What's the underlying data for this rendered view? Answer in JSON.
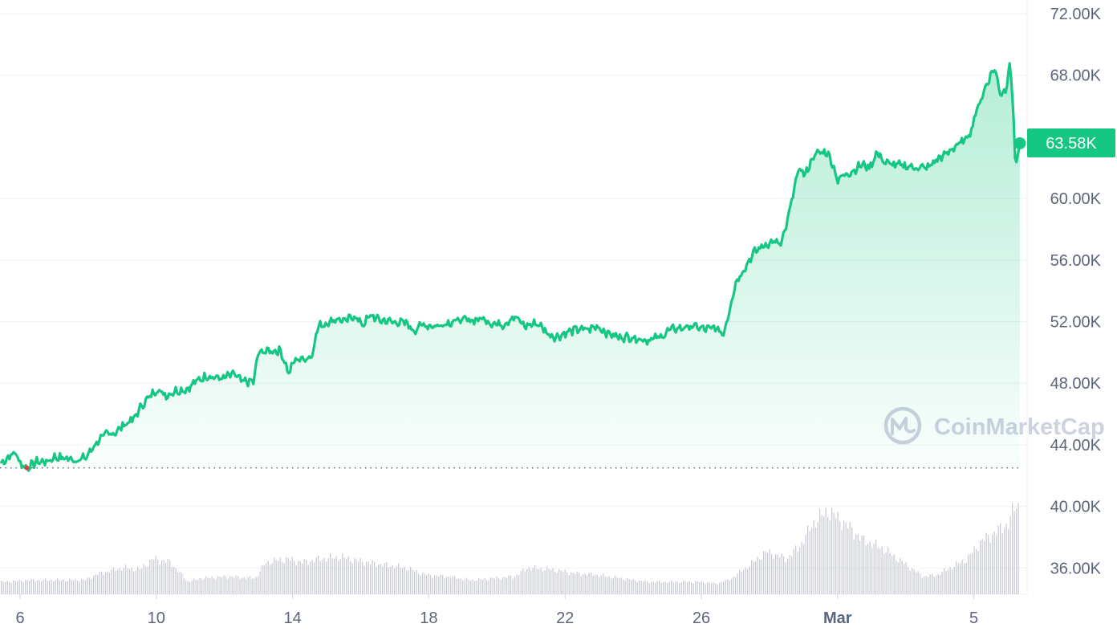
{
  "watermark": {
    "text": "CoinMarketCap"
  },
  "colors": {
    "line": "#16c784",
    "area_top": "#16c784",
    "grid": "#eff2f5",
    "axis_text": "#5d6579",
    "volume_bar": "#c9ccd4",
    "baseline_dots": "#58667e",
    "start_dot": "#ea3943",
    "watermark": "#cdd1e0"
  },
  "chart_data": {
    "type": "area",
    "title": "",
    "xlabel": "",
    "ylabel": "",
    "ylim": [
      34500,
      72000
    ],
    "y_ticks": [
      72000,
      68000,
      60000,
      56000,
      52000,
      48000,
      44000,
      40000,
      36000
    ],
    "y_tick_labels": [
      "72.00K",
      "68.00K",
      "60.00K",
      "56.00K",
      "52.00K",
      "48.00K",
      "44.00K",
      "40.00K",
      "36.00K"
    ],
    "x_ticks": [
      {
        "day": 6,
        "label": "6",
        "bold": false
      },
      {
        "day": 10,
        "label": "10",
        "bold": false
      },
      {
        "day": 14,
        "label": "14",
        "bold": false
      },
      {
        "day": 18,
        "label": "18",
        "bold": false
      },
      {
        "day": 22,
        "label": "22",
        "bold": false
      },
      {
        "day": 26,
        "label": "26",
        "bold": false
      },
      {
        "day": 30,
        "label": "Mar",
        "bold": true
      },
      {
        "day": 34,
        "label": "5",
        "bold": false
      }
    ],
    "x_axis_note": "day of Feb; Mar 1 = 30, Mar 5 = 34",
    "xlim": [
      5.45,
      35.35
    ],
    "current_price": 63580,
    "current_price_label": "63.58K",
    "baseline_value": 42500,
    "series": [
      {
        "values": [
          [
            5.45,
            42800
          ],
          [
            5.6,
            43100
          ],
          [
            5.85,
            43500
          ],
          [
            6.05,
            42700
          ],
          [
            6.2,
            42500
          ],
          [
            6.5,
            42900
          ],
          [
            6.8,
            42900
          ],
          [
            7.0,
            43200
          ],
          [
            7.4,
            43100
          ],
          [
            7.7,
            43000
          ],
          [
            7.95,
            43200
          ],
          [
            8.1,
            43700
          ],
          [
            8.3,
            44300
          ],
          [
            8.55,
            44700
          ],
          [
            8.8,
            44800
          ],
          [
            9.05,
            45300
          ],
          [
            9.35,
            45700
          ],
          [
            9.55,
            46500
          ],
          [
            9.8,
            47100
          ],
          [
            10.0,
            47600
          ],
          [
            10.3,
            47200
          ],
          [
            10.55,
            47500
          ],
          [
            10.9,
            47600
          ],
          [
            11.15,
            48100
          ],
          [
            11.5,
            48500
          ],
          [
            11.9,
            48300
          ],
          [
            12.3,
            48600
          ],
          [
            12.5,
            48100
          ],
          [
            12.85,
            48100
          ],
          [
            13.0,
            50000
          ],
          [
            13.3,
            50100
          ],
          [
            13.65,
            50100
          ],
          [
            13.9,
            48600
          ],
          [
            14.05,
            49500
          ],
          [
            14.3,
            49600
          ],
          [
            14.55,
            49700
          ],
          [
            14.75,
            51700
          ],
          [
            15.0,
            51900
          ],
          [
            15.3,
            52200
          ],
          [
            15.55,
            52000
          ],
          [
            15.8,
            52400
          ],
          [
            16.05,
            51800
          ],
          [
            16.3,
            52400
          ],
          [
            16.55,
            52100
          ],
          [
            16.9,
            52000
          ],
          [
            17.35,
            51900
          ],
          [
            17.55,
            51400
          ],
          [
            17.8,
            51800
          ],
          [
            18.2,
            51700
          ],
          [
            18.5,
            51900
          ],
          [
            18.9,
            52100
          ],
          [
            19.3,
            52100
          ],
          [
            19.6,
            52200
          ],
          [
            19.85,
            51900
          ],
          [
            20.2,
            51800
          ],
          [
            20.45,
            52300
          ],
          [
            20.6,
            52200
          ],
          [
            20.8,
            51700
          ],
          [
            21.15,
            51900
          ],
          [
            21.3,
            51700
          ],
          [
            21.5,
            51200
          ],
          [
            21.75,
            51000
          ],
          [
            22.05,
            51300
          ],
          [
            22.35,
            51500
          ],
          [
            22.7,
            51500
          ],
          [
            22.95,
            51700
          ],
          [
            23.2,
            51300
          ],
          [
            23.55,
            51000
          ],
          [
            23.9,
            51000
          ],
          [
            24.15,
            50900
          ],
          [
            24.4,
            50800
          ],
          [
            24.8,
            51000
          ],
          [
            25.1,
            51500
          ],
          [
            25.45,
            51600
          ],
          [
            25.8,
            51700
          ],
          [
            26.1,
            51500
          ],
          [
            26.4,
            51600
          ],
          [
            26.65,
            51200
          ],
          [
            26.85,
            53000
          ],
          [
            27.0,
            54500
          ],
          [
            27.3,
            55600
          ],
          [
            27.55,
            56500
          ],
          [
            27.8,
            56900
          ],
          [
            28.1,
            57200
          ],
          [
            28.35,
            57000
          ],
          [
            28.55,
            58700
          ],
          [
            28.75,
            61000
          ],
          [
            28.9,
            62000
          ],
          [
            29.05,
            61500
          ],
          [
            29.25,
            62600
          ],
          [
            29.45,
            63000
          ],
          [
            29.7,
            63000
          ],
          [
            29.9,
            62000
          ],
          [
            30.0,
            61100
          ],
          [
            30.2,
            61600
          ],
          [
            30.4,
            61700
          ],
          [
            30.7,
            62200
          ],
          [
            30.95,
            62000
          ],
          [
            31.15,
            63000
          ],
          [
            31.4,
            62300
          ],
          [
            31.65,
            62200
          ],
          [
            32.0,
            62100
          ],
          [
            32.3,
            62000
          ],
          [
            32.65,
            62000
          ],
          [
            32.9,
            62500
          ],
          [
            33.2,
            62900
          ],
          [
            33.45,
            63400
          ],
          [
            33.7,
            63700
          ],
          [
            33.9,
            64300
          ],
          [
            34.05,
            65500
          ],
          [
            34.25,
            66700
          ],
          [
            34.45,
            67800
          ],
          [
            34.6,
            68500
          ],
          [
            34.8,
            66700
          ],
          [
            34.95,
            67200
          ],
          [
            35.05,
            68800
          ],
          [
            35.15,
            66200
          ],
          [
            35.22,
            62000
          ],
          [
            35.35,
            63580
          ]
        ]
      }
    ],
    "volume": {
      "ylim": [
        0,
        150
      ],
      "values": [
        [
          5.45,
          14
        ],
        [
          6.3,
          16
        ],
        [
          7.5,
          16
        ],
        [
          7.9,
          16
        ],
        [
          8.2,
          22
        ],
        [
          8.6,
          26
        ],
        [
          9.0,
          30
        ],
        [
          9.5,
          28
        ],
        [
          9.9,
          40
        ],
        [
          10.4,
          36
        ],
        [
          10.9,
          14
        ],
        [
          11.3,
          18
        ],
        [
          12.1,
          20
        ],
        [
          12.9,
          18
        ],
        [
          13.2,
          36
        ],
        [
          13.8,
          40
        ],
        [
          14.3,
          36
        ],
        [
          14.8,
          40
        ],
        [
          15.4,
          42
        ],
        [
          15.9,
          38
        ],
        [
          16.5,
          34
        ],
        [
          17.3,
          30
        ],
        [
          17.9,
          22
        ],
        [
          18.5,
          20
        ],
        [
          19.2,
          16
        ],
        [
          19.9,
          18
        ],
        [
          20.5,
          20
        ],
        [
          20.9,
          30
        ],
        [
          21.6,
          28
        ],
        [
          22.2,
          24
        ],
        [
          22.9,
          22
        ],
        [
          23.6,
          18
        ],
        [
          24.4,
          14
        ],
        [
          25.2,
          14
        ],
        [
          25.9,
          14
        ],
        [
          26.4,
          12
        ],
        [
          26.8,
          16
        ],
        [
          27.3,
          30
        ],
        [
          27.9,
          48
        ],
        [
          28.5,
          40
        ],
        [
          28.9,
          56
        ],
        [
          29.3,
          82
        ],
        [
          29.7,
          94
        ],
        [
          30.2,
          80
        ],
        [
          30.7,
          62
        ],
        [
          31.3,
          52
        ],
        [
          31.9,
          36
        ],
        [
          32.5,
          20
        ],
        [
          32.9,
          22
        ],
        [
          33.3,
          30
        ],
        [
          33.8,
          40
        ],
        [
          34.2,
          60
        ],
        [
          34.7,
          72
        ],
        [
          35.0,
          80
        ],
        [
          35.2,
          100
        ],
        [
          35.35,
          100
        ]
      ]
    }
  }
}
